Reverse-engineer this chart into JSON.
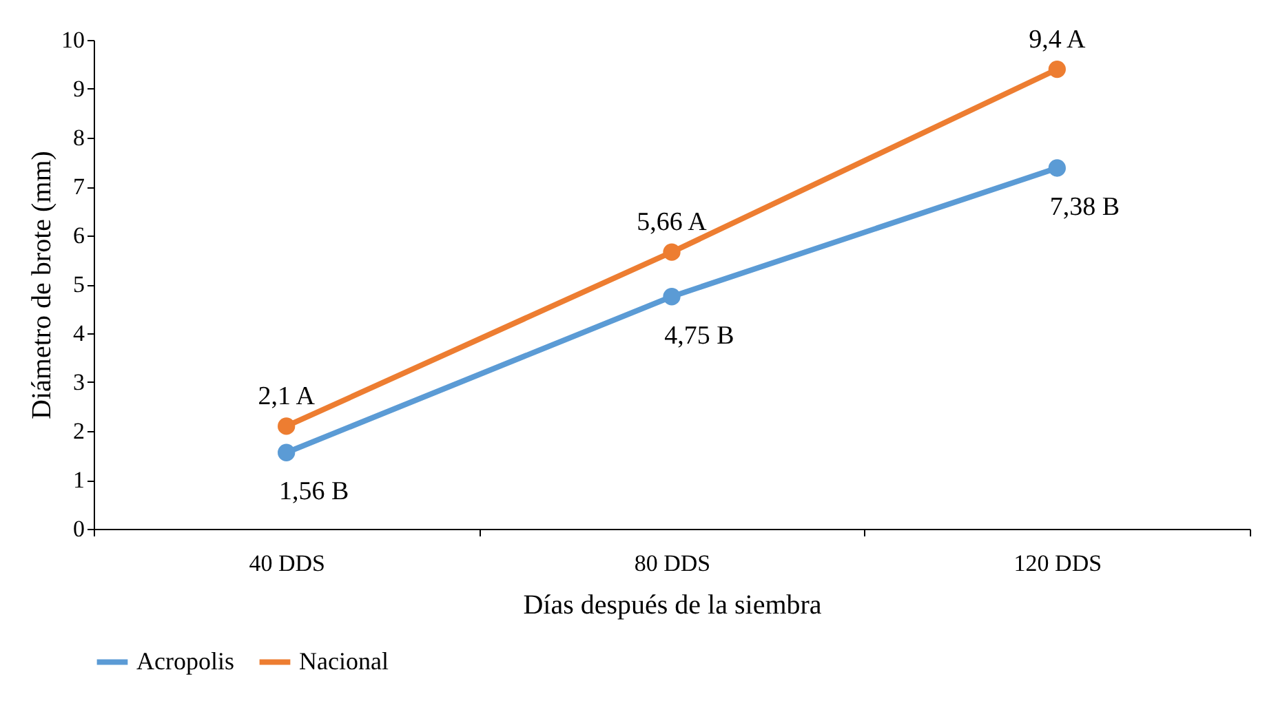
{
  "chart_data": {
    "type": "line",
    "xlabel": "Días después de la siembra",
    "ylabel": "Diámetro de brote (mm)",
    "categories": [
      "40 DDS",
      "80 DDS",
      "120 DDS"
    ],
    "series": [
      {
        "name": "Acropolis",
        "color": "#5b9bd5",
        "values": [
          1.56,
          4.75,
          7.38
        ],
        "value_labels": [
          "1,56 B",
          "4,75 B",
          "7,38 B"
        ]
      },
      {
        "name": "Nacional",
        "color": "#ed7d31",
        "values": [
          2.1,
          5.66,
          9.4
        ],
        "value_labels": [
          "2,1 A",
          "5,66 A",
          "9,4 A"
        ]
      }
    ],
    "ylim": [
      0,
      10
    ],
    "yticks": [
      0,
      1,
      2,
      3,
      4,
      5,
      6,
      7,
      8,
      9,
      10
    ],
    "grid": false,
    "legend": "bottom",
    "marker": "circle",
    "line_style": "solid"
  }
}
